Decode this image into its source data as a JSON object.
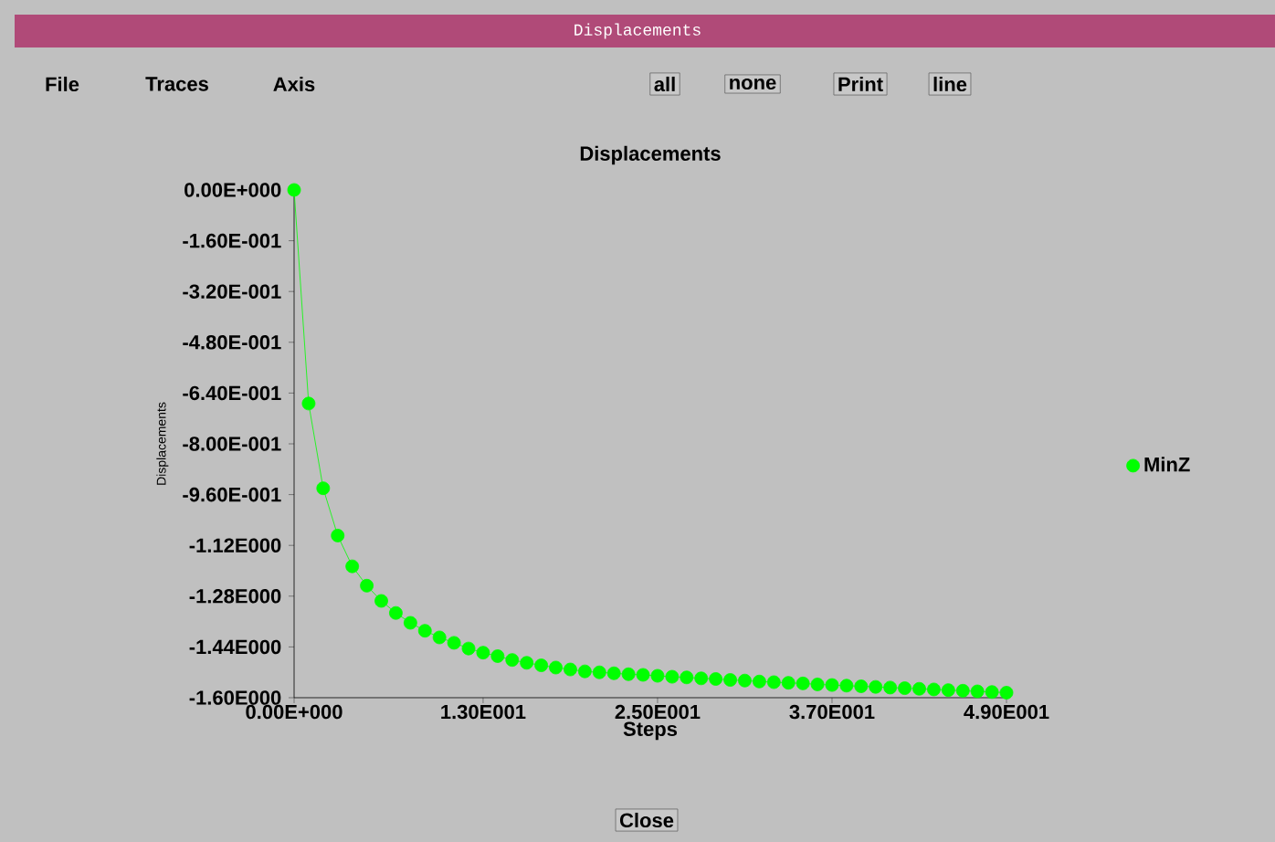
{
  "chart_data": {
    "type": "line",
    "title": "Displacements",
    "xlabel": "Steps",
    "ylabel": "Displacements",
    "annotations": [
      "Displacements",
      "File",
      "Traces",
      "Axis",
      "all",
      "none",
      "Print",
      "line",
      "Close"
    ],
    "x": [
      0,
      1,
      2,
      3,
      4,
      5,
      6,
      7,
      8,
      9,
      10,
      11,
      12,
      13,
      14,
      15,
      16,
      17,
      18,
      19,
      20,
      21,
      22,
      23,
      24,
      25,
      26,
      27,
      28,
      29,
      30,
      31,
      32,
      33,
      34,
      35,
      36,
      37,
      38,
      39,
      40,
      41,
      42,
      43,
      44,
      45,
      46,
      47,
      48,
      49
    ],
    "series": [
      {
        "name": "MinZ",
        "color": "#00ff00",
        "values": [
          0,
          -0.673,
          -0.94,
          -1.089,
          -1.186,
          -1.247,
          -1.295,
          -1.333,
          -1.364,
          -1.389,
          -1.41,
          -1.427,
          -1.445,
          -1.458,
          -1.469,
          -1.481,
          -1.49,
          -1.498,
          -1.505,
          -1.511,
          -1.517,
          -1.52,
          -1.523,
          -1.526,
          -1.528,
          -1.531,
          -1.534,
          -1.536,
          -1.539,
          -1.541,
          -1.544,
          -1.546,
          -1.549,
          -1.551,
          -1.553,
          -1.555,
          -1.558,
          -1.56,
          -1.562,
          -1.564,
          -1.566,
          -1.568,
          -1.57,
          -1.572,
          -1.574,
          -1.576,
          -1.578,
          -1.58,
          -1.582,
          -1.584
        ]
      }
    ],
    "xlim": [
      0,
      49
    ],
    "ylim": [
      -1.6,
      0
    ],
    "xticks": [
      {
        "value": 0,
        "label": "0.00E+000"
      },
      {
        "value": 13,
        "label": "1.30E001"
      },
      {
        "value": 25,
        "label": "2.50E001"
      },
      {
        "value": 37,
        "label": "3.70E001"
      },
      {
        "value": 49,
        "label": "4.90E001"
      }
    ],
    "yticks": [
      {
        "value": 0,
        "label": "0.00E+000"
      },
      {
        "value": -0.16,
        "label": "-1.60E-001"
      },
      {
        "value": -0.32,
        "label": "-3.20E-001"
      },
      {
        "value": -0.48,
        "label": "-4.80E-001"
      },
      {
        "value": -0.64,
        "label": "-6.40E-001"
      },
      {
        "value": -0.8,
        "label": "-8.00E-001"
      },
      {
        "value": -0.96,
        "label": "-9.60E-001"
      },
      {
        "value": -1.12,
        "label": "-1.12E000"
      },
      {
        "value": -1.28,
        "label": "-1.28E000"
      },
      {
        "value": -1.44,
        "label": "-1.44E000"
      },
      {
        "value": -1.6,
        "label": "-1.60E000"
      }
    ],
    "legend": "right",
    "marker": "circle",
    "line_style": "solid"
  }
}
